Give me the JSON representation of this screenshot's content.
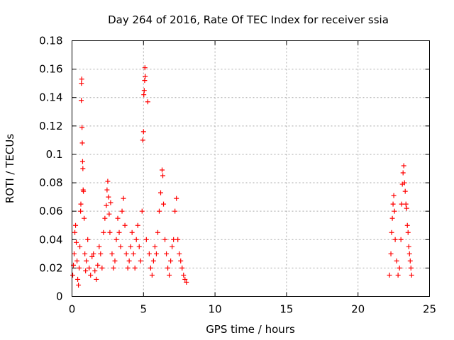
{
  "chart_data": {
    "type": "scatter",
    "title": "Day 264 of 2016, Rate Of TEC Index for receiver ssia",
    "xlabel": "GPS time / hours",
    "ylabel": "ROTI / TECUs",
    "xlim": [
      0,
      25
    ],
    "ylim": [
      0,
      0.18
    ],
    "xticks": [
      0,
      5,
      10,
      15,
      20,
      25
    ],
    "xtick_labels": [
      "0",
      "5",
      "10",
      "15",
      "20",
      "25"
    ],
    "yticks": [
      0,
      0.02,
      0.04,
      0.06,
      0.08,
      0.1,
      0.12,
      0.14,
      0.16,
      0.18
    ],
    "ytick_labels": [
      "0",
      "0.02",
      "0.04",
      "0.06",
      "0.08",
      "0.1",
      "0.12",
      "0.14",
      "0.16",
      "0.18"
    ],
    "grid": true,
    "marker": "+",
    "color": "#ff0000",
    "series": [
      {
        "name": "ROTI",
        "points": [
          [
            0.05,
            0.015
          ],
          [
            0.1,
            0.022
          ],
          [
            0.15,
            0.03
          ],
          [
            0.2,
            0.045
          ],
          [
            0.25,
            0.05
          ],
          [
            0.3,
            0.038
          ],
          [
            0.35,
            0.025
          ],
          [
            0.4,
            0.012
          ],
          [
            0.45,
            0.008
          ],
          [
            0.5,
            0.02
          ],
          [
            0.55,
            0.035
          ],
          [
            0.6,
            0.06
          ],
          [
            0.62,
            0.065
          ],
          [
            0.65,
            0.138
          ],
          [
            0.66,
            0.15
          ],
          [
            0.68,
            0.153
          ],
          [
            0.7,
            0.119
          ],
          [
            0.72,
            0.108
          ],
          [
            0.74,
            0.095
          ],
          [
            0.76,
            0.09
          ],
          [
            0.78,
            0.075
          ],
          [
            0.8,
            0.074
          ],
          [
            0.85,
            0.055
          ],
          [
            0.9,
            0.03
          ],
          [
            0.95,
            0.018
          ],
          [
            1.0,
            0.025
          ],
          [
            1.1,
            0.04
          ],
          [
            1.2,
            0.02
          ],
          [
            1.3,
            0.015
          ],
          [
            1.4,
            0.028
          ],
          [
            1.5,
            0.03
          ],
          [
            1.6,
            0.018
          ],
          [
            1.7,
            0.012
          ],
          [
            1.8,
            0.022
          ],
          [
            1.9,
            0.035
          ],
          [
            2.0,
            0.03
          ],
          [
            2.1,
            0.02
          ],
          [
            2.2,
            0.045
          ],
          [
            2.3,
            0.055
          ],
          [
            2.4,
            0.064
          ],
          [
            2.45,
            0.075
          ],
          [
            2.5,
            0.081
          ],
          [
            2.55,
            0.07
          ],
          [
            2.6,
            0.058
          ],
          [
            2.65,
            0.045
          ],
          [
            2.7,
            0.066
          ],
          [
            2.8,
            0.03
          ],
          [
            2.9,
            0.02
          ],
          [
            3.0,
            0.025
          ],
          [
            3.1,
            0.04
          ],
          [
            3.2,
            0.055
          ],
          [
            3.3,
            0.045
          ],
          [
            3.4,
            0.035
          ],
          [
            3.5,
            0.06
          ],
          [
            3.6,
            0.069
          ],
          [
            3.7,
            0.05
          ],
          [
            3.8,
            0.03
          ],
          [
            3.9,
            0.02
          ],
          [
            4.0,
            0.025
          ],
          [
            4.1,
            0.035
          ],
          [
            4.2,
            0.045
          ],
          [
            4.3,
            0.03
          ],
          [
            4.4,
            0.02
          ],
          [
            4.5,
            0.04
          ],
          [
            4.6,
            0.05
          ],
          [
            4.7,
            0.035
          ],
          [
            4.8,
            0.025
          ],
          [
            4.9,
            0.06
          ],
          [
            4.95,
            0.11
          ],
          [
            5.0,
            0.116
          ],
          [
            5.02,
            0.142
          ],
          [
            5.05,
            0.145
          ],
          [
            5.08,
            0.152
          ],
          [
            5.1,
            0.161
          ],
          [
            5.12,
            0.155
          ],
          [
            5.2,
            0.04
          ],
          [
            5.3,
            0.137
          ],
          [
            5.4,
            0.03
          ],
          [
            5.5,
            0.02
          ],
          [
            5.6,
            0.015
          ],
          [
            5.7,
            0.025
          ],
          [
            5.8,
            0.035
          ],
          [
            5.9,
            0.03
          ],
          [
            6.0,
            0.045
          ],
          [
            6.1,
            0.06
          ],
          [
            6.2,
            0.073
          ],
          [
            6.3,
            0.089
          ],
          [
            6.35,
            0.085
          ],
          [
            6.4,
            0.065
          ],
          [
            6.5,
            0.04
          ],
          [
            6.6,
            0.03
          ],
          [
            6.7,
            0.02
          ],
          [
            6.8,
            0.015
          ],
          [
            6.9,
            0.025
          ],
          [
            7.0,
            0.035
          ],
          [
            7.1,
            0.04
          ],
          [
            7.2,
            0.06
          ],
          [
            7.3,
            0.069
          ],
          [
            7.4,
            0.04
          ],
          [
            7.5,
            0.03
          ],
          [
            7.6,
            0.025
          ],
          [
            7.7,
            0.02
          ],
          [
            7.8,
            0.015
          ],
          [
            7.9,
            0.012
          ],
          [
            8.0,
            0.01
          ],
          [
            22.2,
            0.015
          ],
          [
            22.3,
            0.03
          ],
          [
            22.35,
            0.045
          ],
          [
            22.4,
            0.055
          ],
          [
            22.45,
            0.065
          ],
          [
            22.5,
            0.071
          ],
          [
            22.55,
            0.06
          ],
          [
            22.6,
            0.04
          ],
          [
            22.7,
            0.025
          ],
          [
            22.8,
            0.015
          ],
          [
            22.9,
            0.02
          ],
          [
            23.0,
            0.04
          ],
          [
            23.05,
            0.065
          ],
          [
            23.1,
            0.079
          ],
          [
            23.15,
            0.087
          ],
          [
            23.2,
            0.092
          ],
          [
            23.25,
            0.08
          ],
          [
            23.3,
            0.074
          ],
          [
            23.35,
            0.065
          ],
          [
            23.4,
            0.062
          ],
          [
            23.45,
            0.05
          ],
          [
            23.5,
            0.045
          ],
          [
            23.55,
            0.035
          ],
          [
            23.6,
            0.03
          ],
          [
            23.65,
            0.025
          ],
          [
            23.7,
            0.02
          ],
          [
            23.75,
            0.015
          ]
        ]
      }
    ]
  }
}
